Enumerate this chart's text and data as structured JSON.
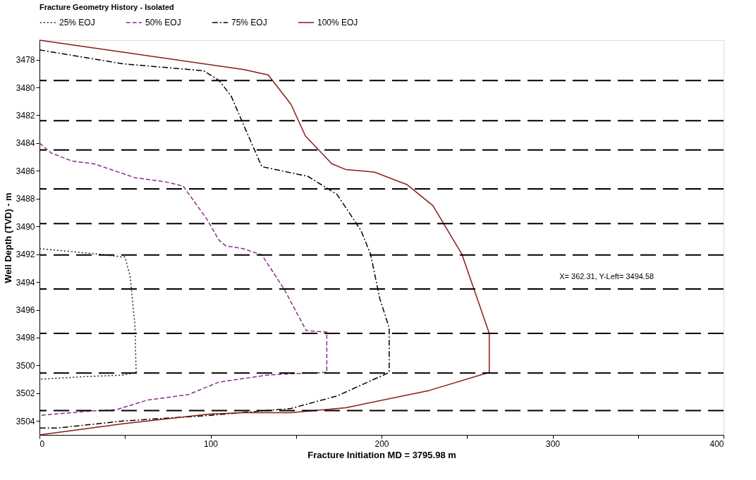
{
  "chart_data": {
    "type": "line",
    "title": "Fracture Geometry History - Isolated",
    "xlabel": "Fracture Initiation MD = 3795.98 m",
    "ylabel": "Well Depth (TVD) - m",
    "xlim": [
      0,
      400
    ],
    "xticks": [
      0,
      {
        "value": 50,
        "label": null
      },
      100,
      {
        "value": 150,
        "label": null
      },
      200,
      {
        "value": 250,
        "label": null
      },
      300,
      {
        "value": 350,
        "label": null
      },
      400
    ],
    "ylim": [
      3505,
      3476.6
    ],
    "yticks": [
      3478,
      3480,
      3482,
      3484,
      3486,
      3488,
      3490,
      3492,
      3494,
      3496,
      3498,
      3500,
      3502,
      3504
    ],
    "grid": false,
    "legend": "top",
    "marker": "none",
    "series": [
      {
        "name": "25% EOJ",
        "color": "#1a1a4a",
        "line_style": "dotted",
        "x": [
          0,
          17.8,
          35,
          48.7,
          50,
          53,
          55.8,
          56.5,
          48.7,
          27.7,
          0
        ],
        "values": [
          3491.6,
          3491.8,
          3492.0,
          3492.2,
          3492.2,
          3493.6,
          3497.1,
          3500.5,
          3500.7,
          3500.8,
          3501.0
        ]
      },
      {
        "name": "50% EOJ",
        "color": "#8b2f8b",
        "line_style": "dashed",
        "x": [
          0,
          6.6,
          19,
          32,
          56,
          74,
          84,
          91,
          98,
          105,
          109,
          119,
          130,
          143,
          156,
          168,
          168,
          147,
          133,
          105,
          99,
          87,
          63,
          44.5,
          27.7,
          0
        ],
        "values": [
          3484.0,
          3484.7,
          3485.3,
          3485.5,
          3486.5,
          3486.8,
          3487.1,
          3488.3,
          3489.5,
          3491.0,
          3491.4,
          3491.6,
          3492.05,
          3494.5,
          3497.5,
          3497.6,
          3500.5,
          3500.6,
          3500.7,
          3501.2,
          3501.5,
          3502.1,
          3502.5,
          3503.2,
          3503.3,
          3503.6
        ]
      },
      {
        "name": "75% EOJ",
        "color": "#000000",
        "line_style": "dashdot",
        "x": [
          0,
          48.7,
          96,
          105,
          112,
          119,
          130,
          157,
          174,
          188,
          193.6,
          199,
          204.5,
          204.5,
          201,
          174,
          147,
          99,
          49,
          11,
          0
        ],
        "values": [
          3477.3,
          3478.3,
          3478.8,
          3479.5,
          3480.6,
          3482.6,
          3485.7,
          3486.4,
          3487.7,
          3490.3,
          3492.0,
          3495.2,
          3497.3,
          3500.5,
          3500.7,
          3502.2,
          3503.1,
          3503.6,
          3504.0,
          3504.5,
          3504.5
        ]
      },
      {
        "name": "100% EOJ",
        "color": "#8b1a1a",
        "line_style": "solid",
        "x": [
          0,
          119,
          133.7,
          147,
          155.5,
          171,
          179,
          196,
          215,
          230,
          247,
          263,
          263,
          228,
          179,
          147,
          119,
          99,
          48.7,
          0
        ],
        "values": [
          3476.6,
          3478.7,
          3479.1,
          3481.2,
          3483.5,
          3485.5,
          3485.9,
          3486.1,
          3487.0,
          3488.5,
          3492.0,
          3497.7,
          3500.5,
          3501.8,
          3503.05,
          3503.4,
          3503.4,
          3503.5,
          3504.2,
          3505.0
        ]
      }
    ],
    "ref_lines": [
      {
        "axis": "y",
        "value": 3479.5,
        "line_style": "dashed"
      },
      {
        "axis": "y",
        "value": 3482.4,
        "line_style": "dashed"
      },
      {
        "axis": "y",
        "value": 3484.5,
        "line_style": "dashed"
      },
      {
        "axis": "y",
        "value": 3487.3,
        "line_style": "dashed"
      },
      {
        "axis": "y",
        "value": 3489.8,
        "line_style": "dashed"
      },
      {
        "axis": "y",
        "value": 3492.05,
        "line_style": "dashed"
      },
      {
        "axis": "y",
        "value": 3494.5,
        "line_style": "dashed"
      },
      {
        "axis": "y",
        "value": 3497.7,
        "line_style": "dashed"
      },
      {
        "axis": "y",
        "value": 3500.55,
        "line_style": "dashed"
      },
      {
        "axis": "y",
        "value": 3503.25,
        "line_style": "dashed"
      }
    ],
    "annotations": [
      "X= 362.31, Y-Left= 3494.58"
    ]
  }
}
